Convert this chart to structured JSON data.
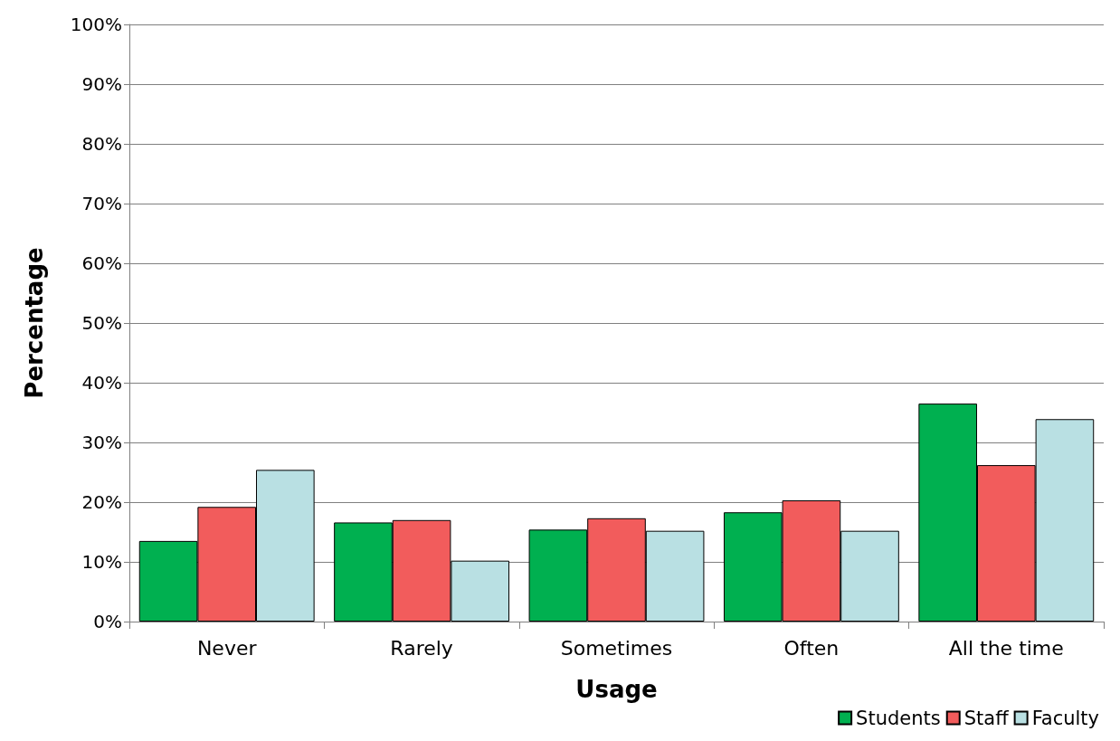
{
  "chart_data": {
    "type": "bar",
    "xlabel": "Usage",
    "ylabel": "Percentage",
    "categories": [
      "Never",
      "Rarely",
      "Sometimes",
      "Often",
      "All the time"
    ],
    "series": [
      {
        "name": "Students",
        "color": "#00b050",
        "values": [
          13.5,
          16.6,
          15.4,
          18.3,
          36.5
        ]
      },
      {
        "name": "Staff",
        "color": "#f25c5c",
        "values": [
          19.2,
          17.0,
          17.3,
          20.3,
          26.2
        ]
      },
      {
        "name": "Faculty",
        "color": "#b9e0e3",
        "values": [
          25.4,
          10.2,
          15.2,
          15.2,
          33.9
        ]
      }
    ],
    "ylim": [
      0,
      100
    ],
    "yticks": [
      {
        "value": 0,
        "label": "0%"
      },
      {
        "value": 10,
        "label": "10%"
      },
      {
        "value": 20,
        "label": "20%"
      },
      {
        "value": 30,
        "label": "30%"
      },
      {
        "value": 40,
        "label": "40%"
      },
      {
        "value": 50,
        "label": "50%"
      },
      {
        "value": 60,
        "label": "60%"
      },
      {
        "value": 70,
        "label": "70%"
      },
      {
        "value": 80,
        "label": "80%"
      },
      {
        "value": 90,
        "label": "90%"
      },
      {
        "value": 100,
        "label": "100%"
      }
    ],
    "grid": "y",
    "legend": "bottom right"
  }
}
